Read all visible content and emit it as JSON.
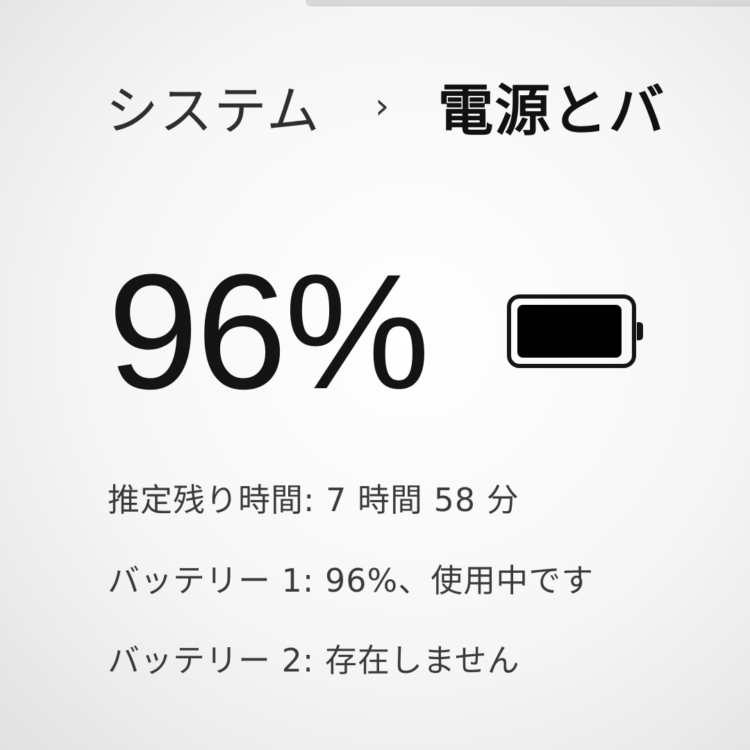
{
  "breadcrumb": {
    "parent": "システム",
    "separator": "›",
    "current": "電源とバ"
  },
  "battery": {
    "percent_label": "96%",
    "level_percent": 96,
    "icon": "battery-full-icon",
    "estimated_time": "推定残り時間: 7 時間 58 分",
    "battery1": "バッテリー 1: 96%、使用中です",
    "battery2": "バッテリー 2: 存在しません"
  }
}
